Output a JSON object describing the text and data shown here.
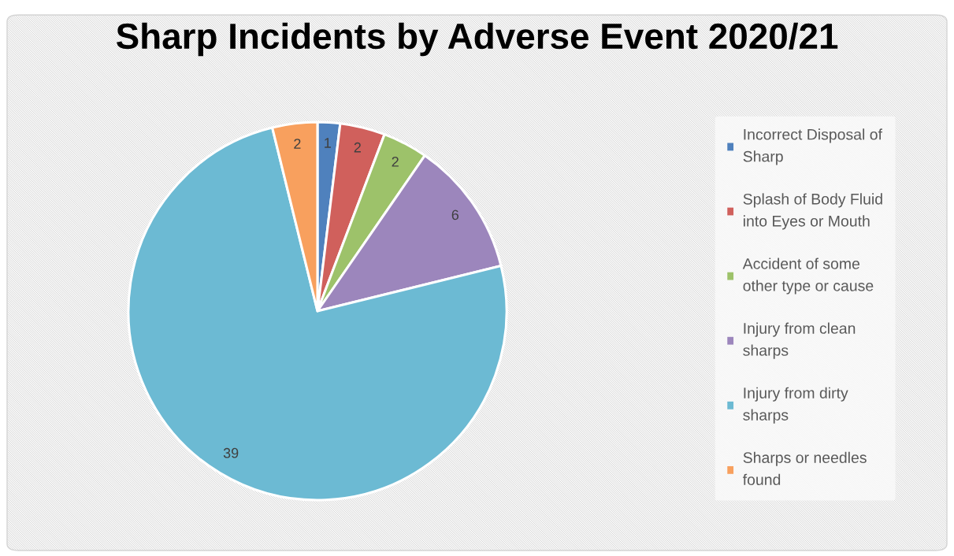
{
  "chart_data": {
    "type": "pie",
    "title": "Sharp Incidents by Adverse Event 2020/21",
    "categories": [
      "Incorrect Disposal of Sharp",
      "Splash of Body Fluid into Eyes or Mouth",
      "Accident of some other type or cause",
      "Injury from clean sharps",
      "Injury from dirty sharps",
      "Sharps or needles found"
    ],
    "values": [
      1,
      2,
      2,
      6,
      39,
      2
    ],
    "colors": [
      "#4f81bd",
      "#d0605c",
      "#9dc26a",
      "#9c86bc",
      "#6cbad3",
      "#f8a05e"
    ],
    "data_labels": true,
    "legend": "right"
  }
}
